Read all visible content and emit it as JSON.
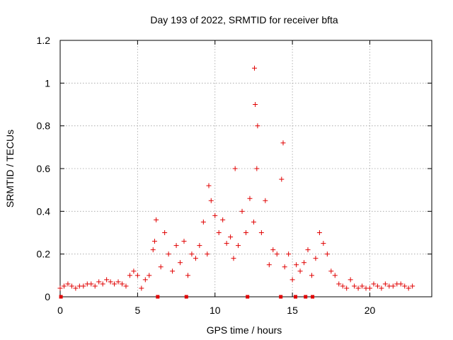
{
  "chart_data": {
    "type": "scatter",
    "title": "Day 193 of 2022, SRMTID for receiver bfta",
    "xlabel": "GPS time / hours",
    "ylabel": "SRMTID / TECUs",
    "xlim": [
      0,
      24
    ],
    "ylim": [
      0,
      1.2
    ],
    "xticks": [
      0,
      5,
      10,
      15,
      20
    ],
    "yticks": [
      0,
      0.2,
      0.4,
      0.6,
      0.8,
      1,
      1.2
    ],
    "xtick_labels": [
      "0",
      "5",
      "10",
      "15",
      "20"
    ],
    "ytick_labels": [
      "0",
      "0.2",
      "0.4",
      "0.6",
      "0.8",
      "1",
      "1.2"
    ],
    "grid": true,
    "marker": "plus",
    "color": "#e00000",
    "zero_markers_x": [
      0.05,
      6.3,
      8.15,
      12.1,
      14.25,
      15.2,
      15.85,
      16.3
    ],
    "series": [
      {
        "name": "SRMTID",
        "x": [
          0.0,
          0.25,
          0.5,
          0.75,
          1.0,
          1.25,
          1.5,
          1.75,
          2.0,
          2.25,
          2.5,
          2.75,
          3.0,
          3.25,
          3.5,
          3.75,
          4.0,
          4.25,
          4.5,
          4.75,
          5.0,
          5.25,
          5.5,
          5.75,
          6.0,
          6.1,
          6.2,
          6.5,
          6.75,
          7.0,
          7.25,
          7.5,
          7.75,
          8.0,
          8.25,
          8.5,
          8.75,
          9.0,
          9.25,
          9.5,
          9.6,
          9.75,
          10.0,
          10.25,
          10.5,
          10.75,
          11.0,
          11.2,
          11.3,
          11.5,
          11.75,
          12.0,
          12.25,
          12.5,
          12.55,
          12.6,
          12.7,
          12.75,
          13.0,
          13.25,
          13.5,
          13.75,
          14.0,
          14.3,
          14.4,
          14.5,
          14.75,
          15.0,
          15.25,
          15.5,
          15.75,
          16.0,
          16.25,
          16.5,
          16.75,
          17.0,
          17.25,
          17.5,
          17.75,
          18.0,
          18.25,
          18.5,
          18.75,
          19.0,
          19.25,
          19.5,
          19.75,
          20.0,
          20.25,
          20.5,
          20.75,
          21.0,
          21.25,
          21.5,
          21.75,
          22.0,
          22.25,
          22.5,
          22.75
        ],
        "y": [
          0.04,
          0.05,
          0.06,
          0.05,
          0.04,
          0.05,
          0.05,
          0.06,
          0.06,
          0.05,
          0.07,
          0.06,
          0.08,
          0.07,
          0.06,
          0.07,
          0.06,
          0.05,
          0.1,
          0.12,
          0.1,
          0.04,
          0.08,
          0.1,
          0.22,
          0.26,
          0.36,
          0.14,
          0.3,
          0.2,
          0.12,
          0.24,
          0.16,
          0.26,
          0.1,
          0.2,
          0.18,
          0.24,
          0.35,
          0.2,
          0.52,
          0.45,
          0.38,
          0.3,
          0.36,
          0.25,
          0.28,
          0.18,
          0.6,
          0.24,
          0.4,
          0.3,
          0.46,
          0.35,
          1.07,
          0.9,
          0.6,
          0.8,
          0.3,
          0.45,
          0.15,
          0.22,
          0.2,
          0.55,
          0.72,
          0.14,
          0.2,
          0.08,
          0.15,
          0.12,
          0.16,
          0.22,
          0.1,
          0.18,
          0.3,
          0.25,
          0.2,
          0.12,
          0.1,
          0.06,
          0.05,
          0.04,
          0.08,
          0.05,
          0.04,
          0.05,
          0.04,
          0.04,
          0.06,
          0.05,
          0.04,
          0.06,
          0.05,
          0.05,
          0.06,
          0.06,
          0.05,
          0.04,
          0.05
        ]
      }
    ]
  }
}
